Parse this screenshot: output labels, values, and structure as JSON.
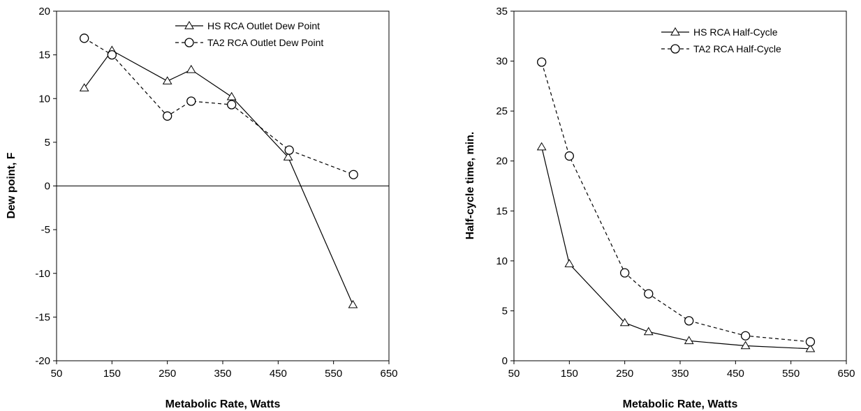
{
  "chart_data": [
    {
      "type": "line",
      "title": "",
      "xlabel": "Metabolic Rate, Watts",
      "ylabel": "Dew point,  F",
      "xlim": [
        50,
        650
      ],
      "ylim": [
        -20,
        20
      ],
      "xticks": [
        50,
        150,
        250,
        350,
        450,
        550,
        650
      ],
      "yticks": [
        -20,
        -15,
        -10,
        -5,
        0,
        5,
        10,
        15,
        20
      ],
      "zero_line": true,
      "grid": false,
      "legend_position": "top-right",
      "series": [
        {
          "name": "HS RCA Outlet Dew Point",
          "marker": "triangle",
          "line": "solid",
          "x": [
            100,
            150,
            250,
            293,
            366,
            468,
            585
          ],
          "y": [
            11.2,
            15.5,
            12.0,
            13.3,
            10.2,
            3.3,
            -13.6
          ]
        },
        {
          "name": "TA2 RCA Outlet Dew Point",
          "marker": "circle",
          "line": "dashed",
          "x": [
            100,
            150,
            250,
            293,
            366,
            470,
            586
          ],
          "y": [
            16.9,
            15.0,
            8.0,
            9.7,
            9.3,
            4.1,
            1.3
          ]
        }
      ]
    },
    {
      "type": "line",
      "title": "",
      "xlabel": "Metabolic Rate, Watts",
      "ylabel": "Half-cycle time, min.",
      "xlim": [
        50,
        650
      ],
      "ylim": [
        0,
        35
      ],
      "xticks": [
        50,
        150,
        250,
        350,
        450,
        550,
        650
      ],
      "yticks": [
        0,
        5,
        10,
        15,
        20,
        25,
        30,
        35
      ],
      "zero_line": false,
      "grid": false,
      "legend_position": "top-right",
      "series": [
        {
          "name": "HS RCA Half-Cycle",
          "marker": "triangle",
          "line": "solid",
          "x": [
            100,
            150,
            250,
            293,
            366,
            468,
            585
          ],
          "y": [
            21.4,
            9.7,
            3.8,
            2.9,
            2.0,
            1.5,
            1.2
          ]
        },
        {
          "name": "TA2 RCA Half-Cycle",
          "marker": "circle",
          "line": "dashed",
          "x": [
            100,
            150,
            250,
            293,
            366,
            468,
            585
          ],
          "y": [
            29.9,
            20.5,
            8.8,
            6.7,
            4.0,
            2.5,
            1.9
          ]
        }
      ]
    }
  ]
}
